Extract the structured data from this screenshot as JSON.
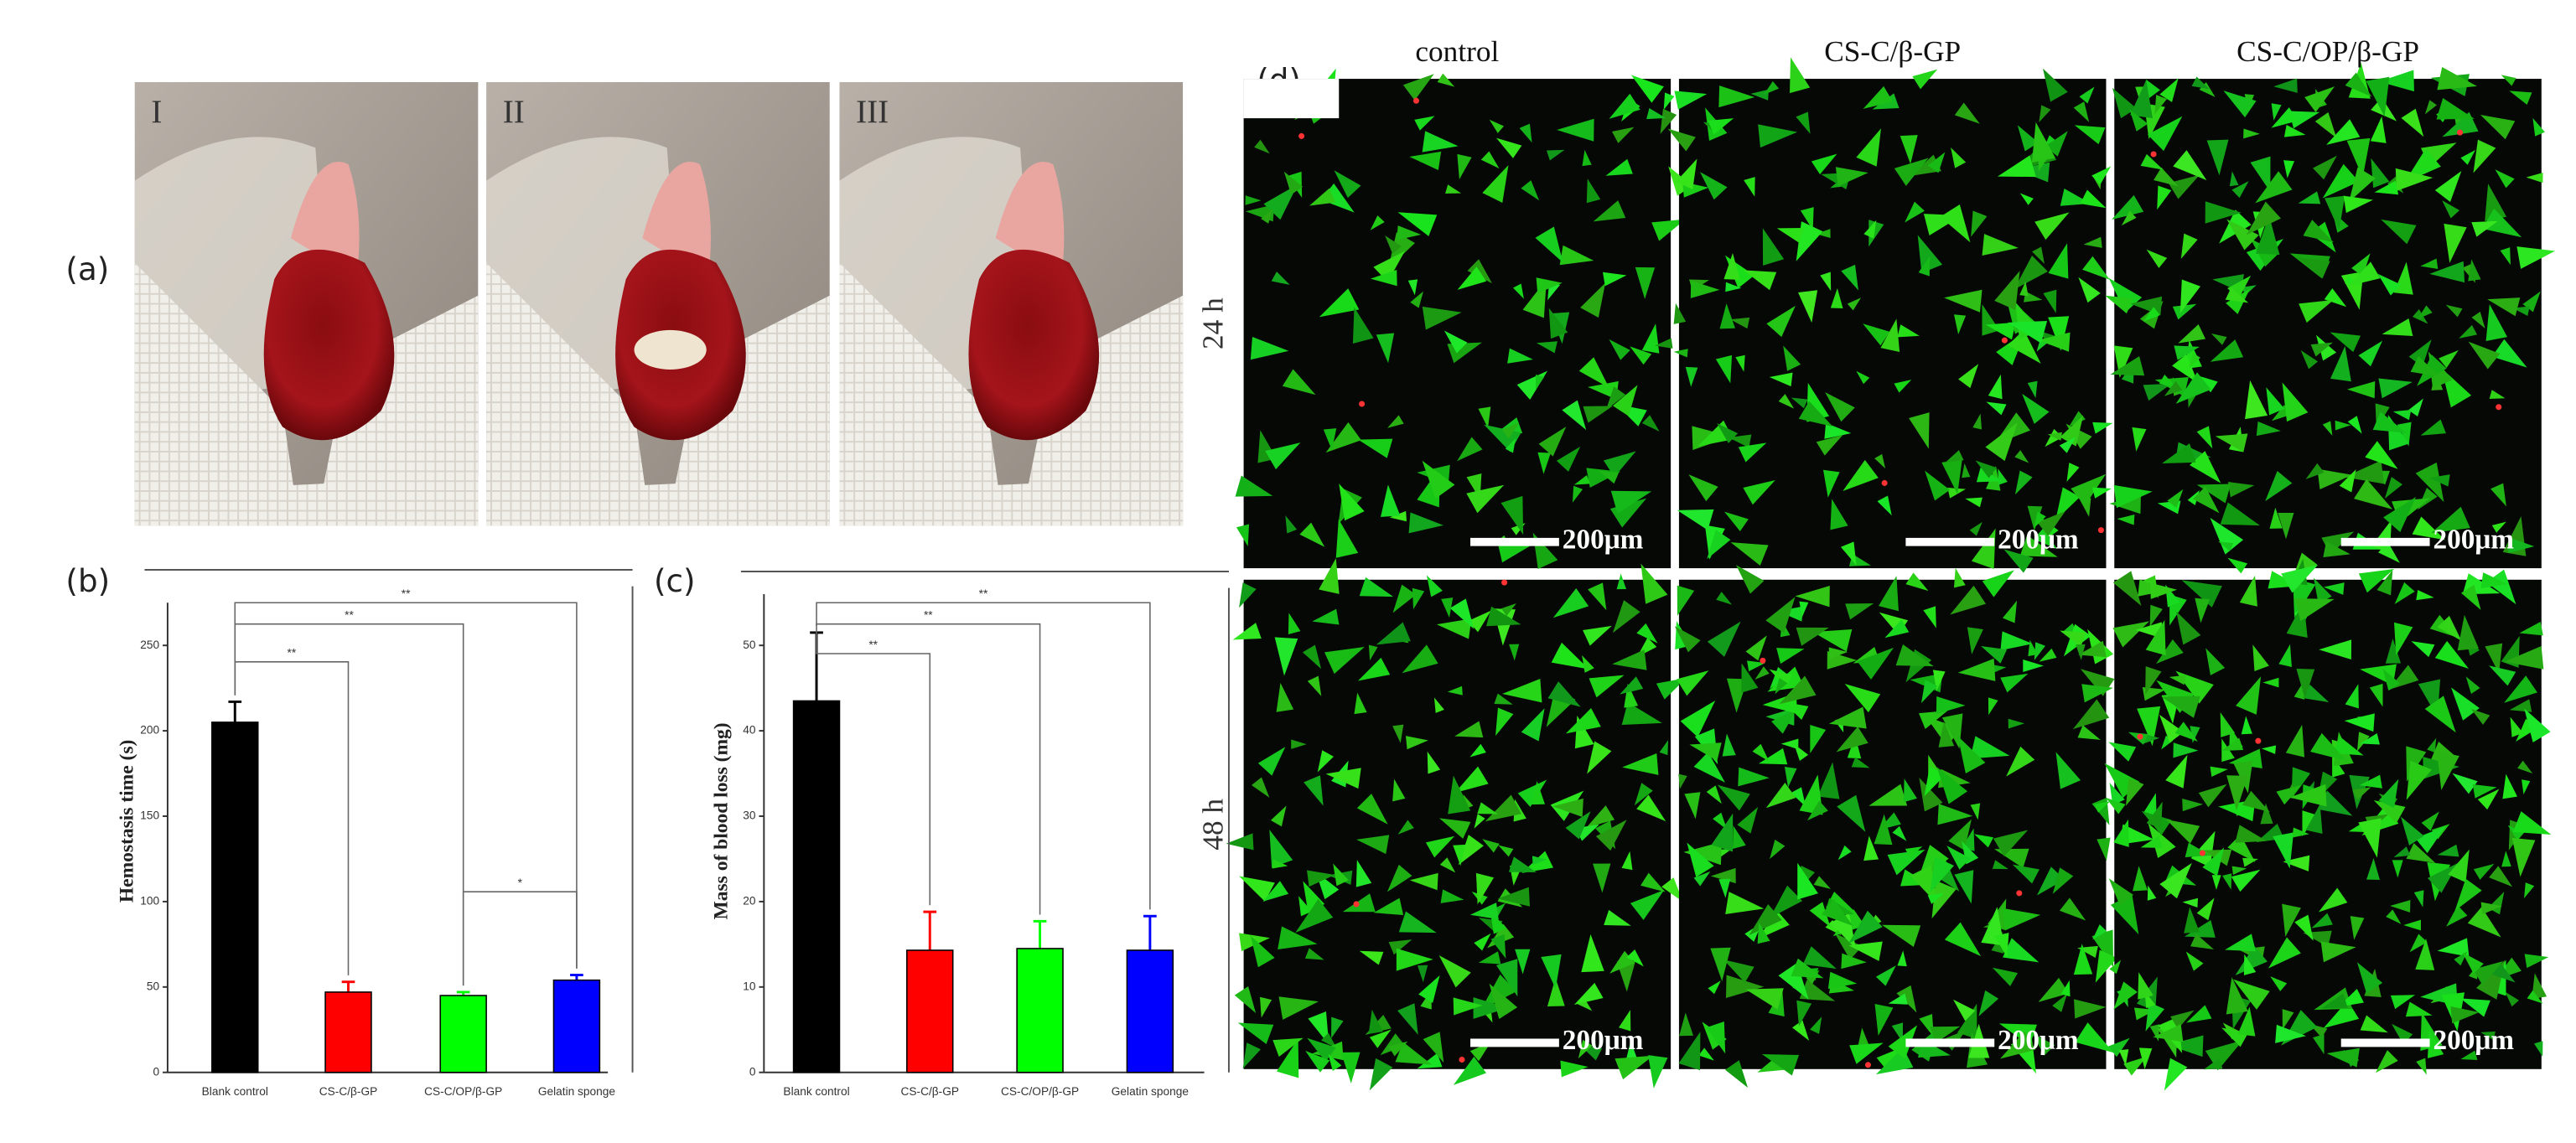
{
  "panels": {
    "a": "(a)",
    "b": "(b)",
    "c": "(c)",
    "d": "(d)"
  },
  "photos": [
    "I",
    "II",
    "III"
  ],
  "chart_data": [
    {
      "type": "bar",
      "ylabel": "Hemostasis time (s)",
      "categories": [
        "Blank control",
        "CS-C/β-GP",
        "CS-C/OP/β-GP",
        "Gelatin sponge"
      ],
      "values": [
        205,
        47,
        45,
        54
      ],
      "errors": [
        12,
        6,
        2,
        3
      ],
      "colors": [
        "#000000",
        "#ff0000",
        "#00ff00",
        "#0000ff"
      ],
      "ylim": [
        0,
        275
      ],
      "yticks": [
        0,
        50,
        100,
        150,
        200,
        250
      ],
      "annotations": [
        "**",
        "**",
        "**",
        "*"
      ]
    },
    {
      "type": "bar",
      "ylabel": "Mass of blood loss (mg)",
      "categories": [
        "Blank control",
        "CS-C/β-GP",
        "CS-C/OP/β-GP",
        "Gelatin sponge"
      ],
      "values": [
        43.5,
        14.3,
        14.5,
        14.3
      ],
      "errors": [
        8,
        4.5,
        3.2,
        4
      ],
      "colors": [
        "#000000",
        "#ff0000",
        "#00ff00",
        "#0000ff"
      ],
      "ylim": [
        0,
        56
      ],
      "yticks": [
        0,
        10,
        20,
        30,
        40,
        50
      ],
      "annotations": [
        "**",
        "**",
        "**"
      ]
    }
  ],
  "microscopy": {
    "columns": [
      "control",
      "CS-C/β-GP",
      "CS-C/OP/β-GP"
    ],
    "rows": [
      "24 h",
      "48 h"
    ],
    "scale_bar": "200μm"
  }
}
